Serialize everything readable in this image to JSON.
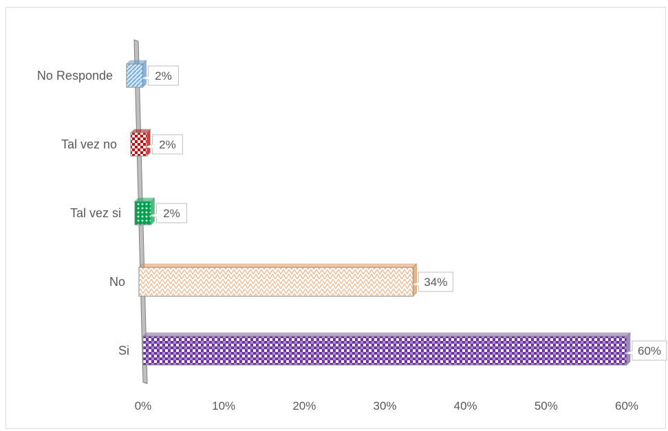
{
  "chart_data": {
    "type": "bar",
    "orientation": "horizontal",
    "style": "3d-clustered-bar",
    "categories": [
      "Si",
      "No",
      "Tal vez si",
      "Tal vez no",
      "No Responde"
    ],
    "values": [
      60,
      34,
      2,
      2,
      2
    ],
    "data_labels": [
      "60%",
      "34%",
      "2%",
      "2%",
      "2%"
    ],
    "x_ticks": [
      "0%",
      "10%",
      "20%",
      "30%",
      "40%",
      "50%",
      "60%"
    ],
    "xlim": [
      0,
      60
    ],
    "title": "",
    "xlabel": "",
    "ylabel": "",
    "grid": false,
    "legend": "none",
    "bar_colors": [
      "#8064a2",
      "#f79646",
      "#00b050",
      "#c00000",
      "#5b9bd5"
    ]
  }
}
